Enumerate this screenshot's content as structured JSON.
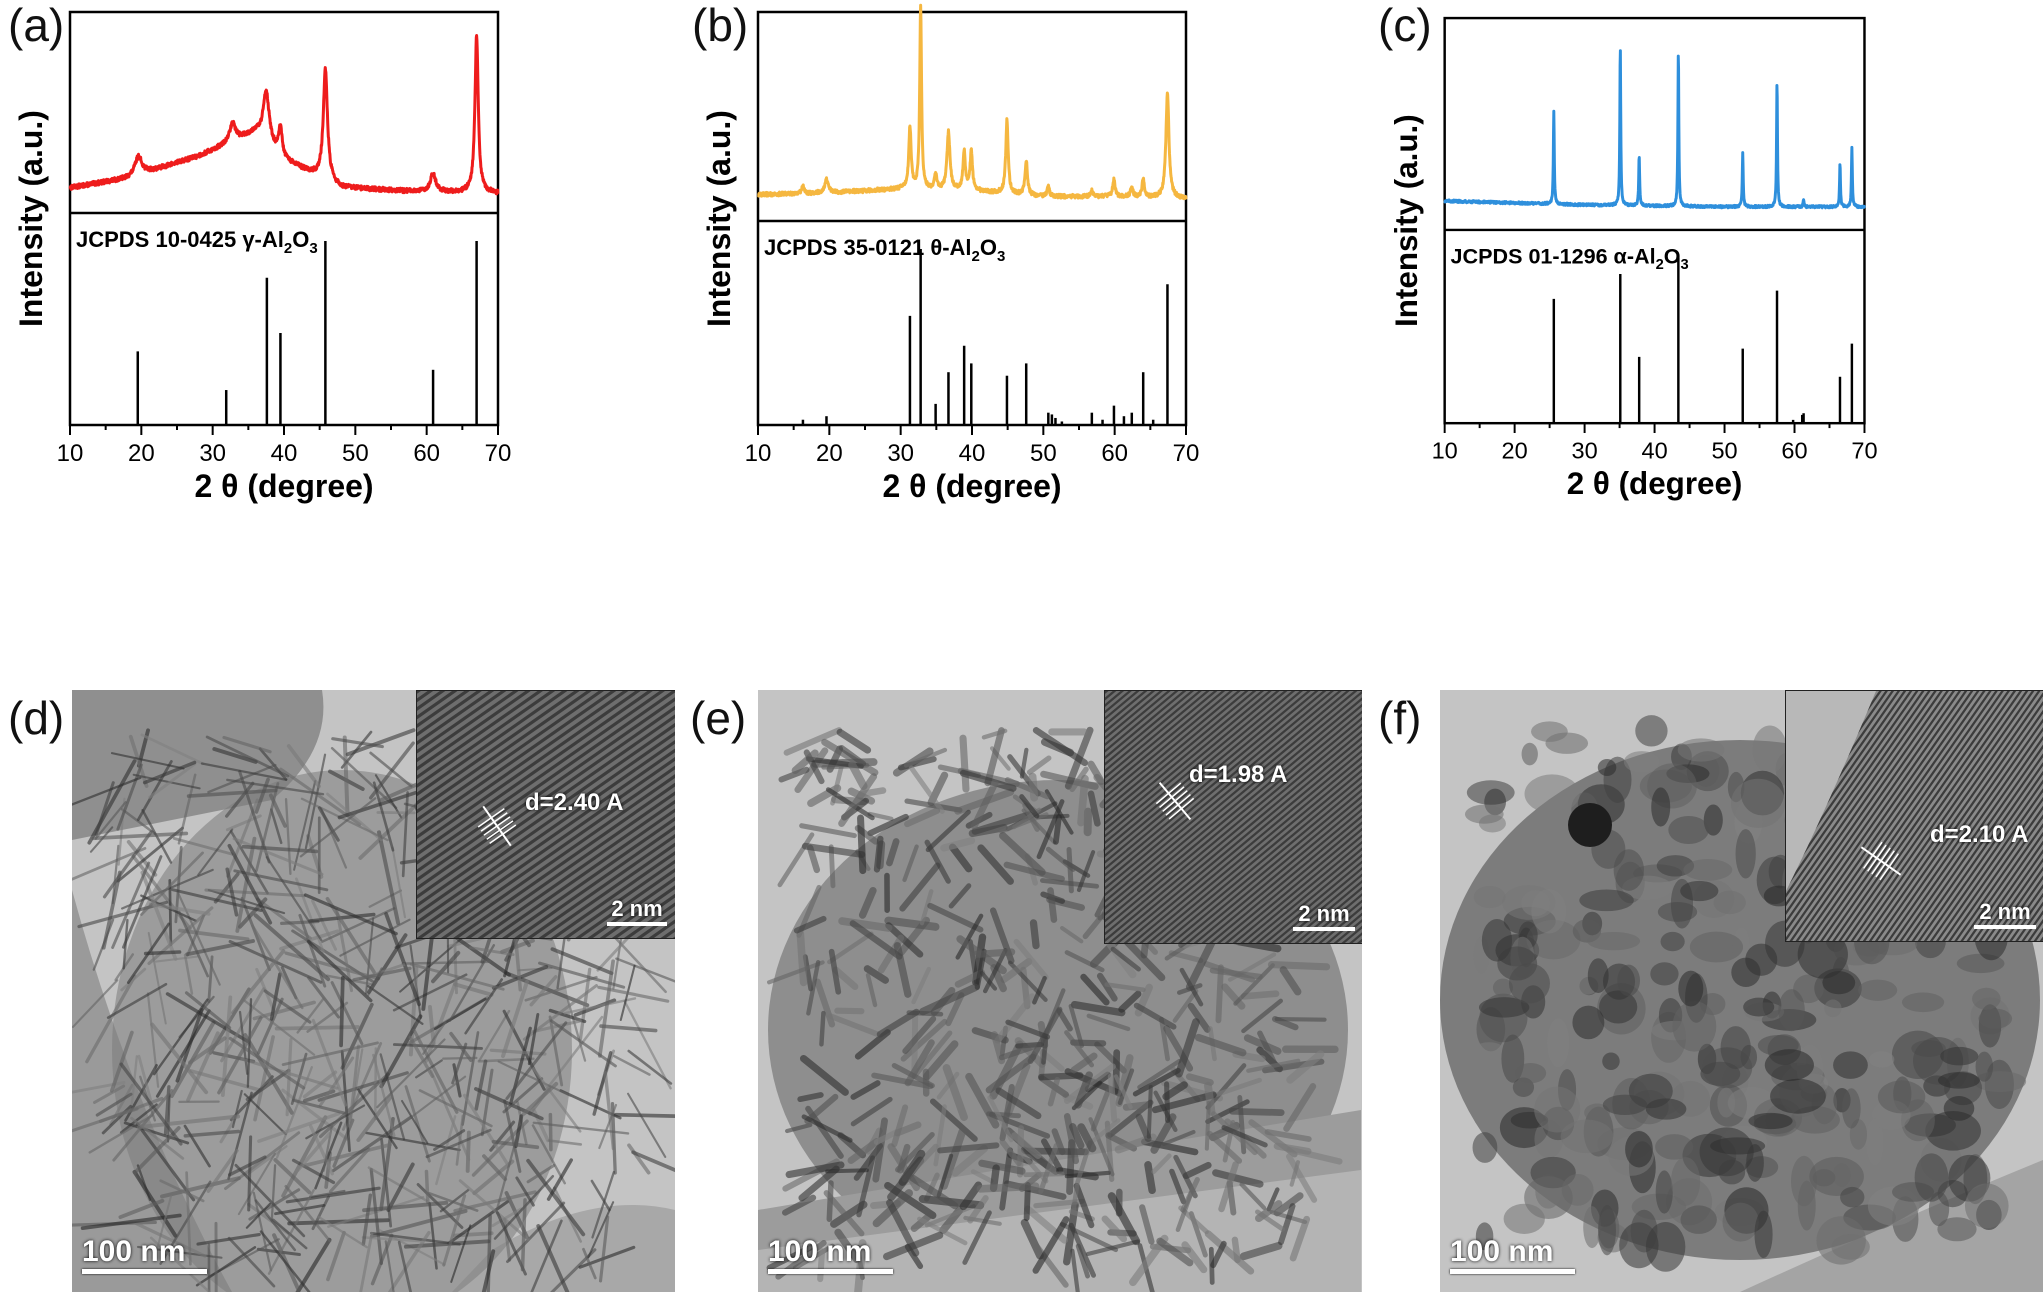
{
  "chart_data": [
    {
      "type": "line",
      "panel_label": "(a)",
      "xlabel": "2 θ (degree)",
      "ylabel": "Intensity (a.u.)",
      "xlim": [
        10,
        70
      ],
      "xticks": [
        "10",
        "20",
        "30",
        "40",
        "50",
        "60",
        "70"
      ],
      "color": "#ee1c1c",
      "baseline": 0.08,
      "background": [
        [
          10,
          0.05
        ],
        [
          18,
          0.1
        ],
        [
          28,
          0.22
        ],
        [
          36,
          0.35
        ],
        [
          40,
          0.2
        ],
        [
          48,
          0.05
        ],
        [
          58,
          0.03
        ],
        [
          70,
          0.02
        ]
      ],
      "peaks": [
        [
          19.6,
          0.1,
          1.2
        ],
        [
          32.8,
          0.1,
          1.0
        ],
        [
          37.5,
          0.28,
          1.0
        ],
        [
          39.5,
          0.15,
          0.6
        ],
        [
          45.8,
          0.6,
          0.7
        ],
        [
          60.9,
          0.1,
          0.9
        ],
        [
          67.0,
          0.85,
          0.55
        ]
      ],
      "noise": 0.012,
      "ref_label_pre": "JCPDS 10-0425 γ-Al",
      "ref_sub1": "2",
      "ref_mid": "O",
      "ref_sub2": "3",
      "ref_lines": [
        [
          19.5,
          0.4
        ],
        [
          31.9,
          0.19
        ],
        [
          37.6,
          0.8
        ],
        [
          39.5,
          0.5
        ],
        [
          45.8,
          1.0
        ],
        [
          60.9,
          0.3
        ],
        [
          67.0,
          1.0
        ]
      ]
    },
    {
      "type": "line",
      "panel_label": "(b)",
      "xlabel": "2 θ (degree)",
      "ylabel": "Intensity (a.u.)",
      "xlim": [
        10,
        70
      ],
      "xticks": [
        "10",
        "20",
        "30",
        "40",
        "50",
        "60",
        "70"
      ],
      "color": "#f5b740",
      "baseline": 0.08,
      "background": [
        [
          10,
          0.05
        ],
        [
          20,
          0.06
        ],
        [
          30,
          0.08
        ],
        [
          40,
          0.07
        ],
        [
          50,
          0.04
        ],
        [
          60,
          0.04
        ],
        [
          70,
          0.03
        ]
      ],
      "peaks": [
        [
          16.3,
          0.04,
          0.4
        ],
        [
          19.6,
          0.07,
          0.6
        ],
        [
          31.3,
          0.32,
          0.4
        ],
        [
          32.8,
          0.95,
          0.3
        ],
        [
          34.9,
          0.08,
          0.4
        ],
        [
          36.7,
          0.3,
          0.5
        ],
        [
          38.9,
          0.2,
          0.4
        ],
        [
          39.9,
          0.2,
          0.4
        ],
        [
          44.9,
          0.38,
          0.4
        ],
        [
          47.6,
          0.18,
          0.4
        ],
        [
          50.7,
          0.05,
          0.4
        ],
        [
          56.8,
          0.03,
          0.4
        ],
        [
          59.9,
          0.09,
          0.4
        ],
        [
          62.4,
          0.05,
          0.4
        ],
        [
          64.0,
          0.09,
          0.4
        ],
        [
          67.4,
          0.55,
          0.5
        ]
      ],
      "noise": 0.01,
      "ref_label_pre": "JCPDS 35-0121 θ-Al",
      "ref_sub1": "2",
      "ref_mid": "O",
      "ref_sub2": "3",
      "ref_lines": [
        [
          16.3,
          0.03
        ],
        [
          19.6,
          0.05
        ],
        [
          31.3,
          0.62
        ],
        [
          32.8,
          1.0
        ],
        [
          34.9,
          0.12
        ],
        [
          36.7,
          0.3
        ],
        [
          38.9,
          0.45
        ],
        [
          39.9,
          0.35
        ],
        [
          44.9,
          0.28
        ],
        [
          47.6,
          0.35
        ],
        [
          50.7,
          0.07
        ],
        [
          51.2,
          0.06
        ],
        [
          51.7,
          0.04
        ],
        [
          52.6,
          0.02
        ],
        [
          56.8,
          0.07
        ],
        [
          58.3,
          0.03
        ],
        [
          59.9,
          0.11
        ],
        [
          61.3,
          0.05
        ],
        [
          62.4,
          0.07
        ],
        [
          64.0,
          0.3
        ],
        [
          65.4,
          0.03
        ],
        [
          67.4,
          0.8
        ]
      ]
    },
    {
      "type": "line",
      "panel_label": "(c)",
      "xlabel": "2 θ (degree)",
      "ylabel": "Intensity (a.u.)",
      "xlim": [
        10,
        70
      ],
      "xticks": [
        "10",
        "20",
        "30",
        "40",
        "50",
        "60",
        "70"
      ],
      "color": "#2e8fdc",
      "baseline": 0.1,
      "background": [
        [
          10,
          0.04
        ],
        [
          30,
          0.02
        ],
        [
          50,
          0.01
        ],
        [
          70,
          0.01
        ]
      ],
      "peaks": [
        [
          25.6,
          0.48,
          0.15
        ],
        [
          35.1,
          0.82,
          0.15
        ],
        [
          37.8,
          0.26,
          0.15
        ],
        [
          43.4,
          0.8,
          0.15
        ],
        [
          52.6,
          0.28,
          0.15
        ],
        [
          57.5,
          0.65,
          0.15
        ],
        [
          61.3,
          0.04,
          0.15
        ],
        [
          66.5,
          0.22,
          0.15
        ],
        [
          68.2,
          0.3,
          0.15
        ]
      ],
      "noise": 0.006,
      "ref_label_pre": "JCPDS 01-1296 α-Al",
      "ref_sub1": "2",
      "ref_mid": "O",
      "ref_sub2": "3",
      "ref_lines": [
        [
          25.6,
          0.75
        ],
        [
          35.1,
          0.9
        ],
        [
          37.8,
          0.4
        ],
        [
          43.4,
          1.0
        ],
        [
          52.6,
          0.45
        ],
        [
          57.5,
          0.8
        ],
        [
          59.8,
          0.02
        ],
        [
          61.1,
          0.05
        ],
        [
          61.3,
          0.06
        ],
        [
          66.5,
          0.28
        ],
        [
          68.2,
          0.48
        ]
      ]
    }
  ],
  "micrographs": [
    {
      "panel_label": "(d)",
      "scale_bar": "100 nm",
      "inset_scale": "2 nm",
      "d_spacing": "d=2.40 A",
      "morphology": "needles",
      "seed": 11
    },
    {
      "panel_label": "(e)",
      "scale_bar": "100 nm",
      "inset_scale": "2 nm",
      "d_spacing": "d=1.98 A",
      "morphology": "rods",
      "seed": 23
    },
    {
      "panel_label": "(f)",
      "scale_bar": "100 nm",
      "inset_scale": "2 nm",
      "d_spacing": "d=2.10 A",
      "morphology": "particles",
      "seed": 37
    }
  ]
}
